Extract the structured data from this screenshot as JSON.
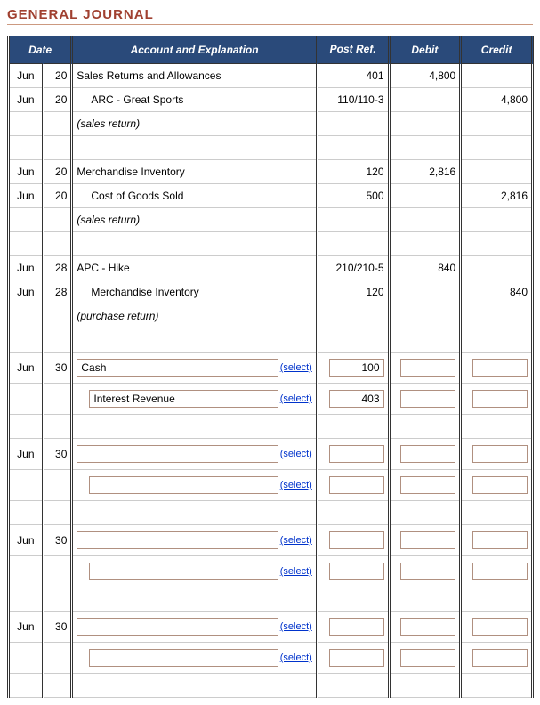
{
  "title": "GENERAL JOURNAL",
  "headers": {
    "date": "Date",
    "account": "Account and Explanation",
    "postref": "Post Ref.",
    "debit": "Debit",
    "credit": "Credit"
  },
  "select_label": "(select)",
  "entries": [
    {
      "lines": [
        {
          "month": "Jun",
          "day": "20",
          "acct": "Sales Returns and Allowances",
          "indent": false,
          "postref": "401",
          "debit": "4,800",
          "credit": ""
        },
        {
          "month": "Jun",
          "day": "20",
          "acct": "ARC - Great Sports",
          "indent": true,
          "postref": "110/110-3",
          "debit": "",
          "credit": "4,800"
        },
        {
          "month": "",
          "day": "",
          "acct": "(sales return)",
          "explain": true
        }
      ]
    },
    {
      "lines": [
        {
          "month": "Jun",
          "day": "20",
          "acct": "Merchandise Inventory",
          "indent": false,
          "postref": "120",
          "debit": "2,816",
          "credit": ""
        },
        {
          "month": "Jun",
          "day": "20",
          "acct": "Cost of Goods Sold",
          "indent": true,
          "postref": "500",
          "debit": "",
          "credit": "2,816"
        },
        {
          "month": "",
          "day": "",
          "acct": "(sales return)",
          "explain": true
        }
      ]
    },
    {
      "lines": [
        {
          "month": "Jun",
          "day": "28",
          "acct": "APC - Hike",
          "indent": false,
          "postref": "210/210-5",
          "debit": "840",
          "credit": ""
        },
        {
          "month": "Jun",
          "day": "28",
          "acct": "Merchandise Inventory",
          "indent": true,
          "postref": "120",
          "debit": "",
          "credit": "840"
        },
        {
          "month": "",
          "day": "",
          "acct": "(purchase return)",
          "explain": true
        }
      ]
    }
  ],
  "editable": [
    {
      "month": "Jun",
      "day": "30",
      "row1": {
        "acct": "Cash",
        "postref": "100",
        "debit": "",
        "credit": ""
      },
      "row2": {
        "acct": "Interest Revenue",
        "postref": "403",
        "debit": "",
        "credit": ""
      }
    },
    {
      "month": "Jun",
      "day": "30",
      "row1": {
        "acct": "",
        "postref": "",
        "debit": "",
        "credit": ""
      },
      "row2": {
        "acct": "",
        "postref": "",
        "debit": "",
        "credit": ""
      }
    },
    {
      "month": "Jun",
      "day": "30",
      "row1": {
        "acct": "",
        "postref": "",
        "debit": "",
        "credit": ""
      },
      "row2": {
        "acct": "",
        "postref": "",
        "debit": "",
        "credit": ""
      }
    },
    {
      "month": "Jun",
      "day": "30",
      "row1": {
        "acct": "",
        "postref": "",
        "debit": "",
        "credit": ""
      },
      "row2": {
        "acct": "",
        "postref": "",
        "debit": "",
        "credit": ""
      }
    }
  ],
  "colors": {
    "header_bg": "#2a4a7a",
    "title_color": "#a04030",
    "input_border": "#b09080",
    "link_color": "#0033cc"
  }
}
